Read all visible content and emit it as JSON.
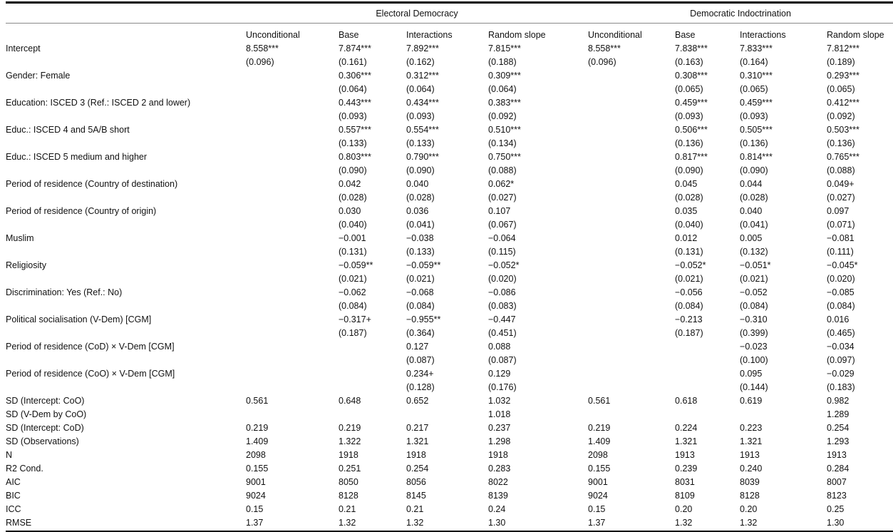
{
  "table": {
    "group_headers": [
      {
        "label": "Electoral Democracy",
        "span": 4
      },
      {
        "label": "Democratic Indoctrination",
        "span": 4
      }
    ],
    "model_headers": [
      "Unconditional",
      "Base",
      "Interactions",
      "Random slope",
      "Unconditional",
      "Base",
      "Interactions",
      "Random slope"
    ],
    "coefficient_rows": [
      {
        "label": "Intercept",
        "estimates": [
          "8.558***",
          "7.874***",
          "7.892***",
          "7.815***",
          "8.558***",
          "7.838***",
          "7.833***",
          "7.812***"
        ],
        "std_errors": [
          "(0.096)",
          "(0.161)",
          "(0.162)",
          "(0.188)",
          "(0.096)",
          "(0.163)",
          "(0.164)",
          "(0.189)"
        ]
      },
      {
        "label": "Gender: Female",
        "estimates": [
          "",
          "0.306***",
          "0.312***",
          "0.309***",
          "",
          "0.308***",
          "0.310***",
          "0.293***"
        ],
        "std_errors": [
          "",
          "(0.064)",
          "(0.064)",
          "(0.064)",
          "",
          "(0.065)",
          "(0.065)",
          "(0.065)"
        ]
      },
      {
        "label": "Education: ISCED 3 (Ref.: ISCED 2 and lower)",
        "estimates": [
          "",
          "0.443***",
          "0.434***",
          "0.383***",
          "",
          "0.459***",
          "0.459***",
          "0.412***"
        ],
        "std_errors": [
          "",
          "(0.093)",
          "(0.093)",
          "(0.092)",
          "",
          "(0.093)",
          "(0.093)",
          "(0.092)"
        ]
      },
      {
        "label": "Educ.: ISCED 4 and 5A/B short",
        "estimates": [
          "",
          "0.557***",
          "0.554***",
          "0.510***",
          "",
          "0.506***",
          "0.505***",
          "0.503***"
        ],
        "std_errors": [
          "",
          "(0.133)",
          "(0.133)",
          "(0.134)",
          "",
          "(0.136)",
          "(0.136)",
          "(0.136)"
        ]
      },
      {
        "label": "Educ.: ISCED 5 medium and higher",
        "estimates": [
          "",
          "0.803***",
          "0.790***",
          "0.750***",
          "",
          "0.817***",
          "0.814***",
          "0.765***"
        ],
        "std_errors": [
          "",
          "(0.090)",
          "(0.090)",
          "(0.088)",
          "",
          "(0.090)",
          "(0.090)",
          "(0.088)"
        ]
      },
      {
        "label": "Period of residence (Country of destination)",
        "estimates": [
          "",
          "0.042",
          "0.040",
          "0.062*",
          "",
          "0.045",
          "0.044",
          "0.049+"
        ],
        "std_errors": [
          "",
          "(0.028)",
          "(0.028)",
          "(0.027)",
          "",
          "(0.028)",
          "(0.028)",
          "(0.027)"
        ]
      },
      {
        "label": "Period of residence (Country of origin)",
        "estimates": [
          "",
          "0.030",
          "0.036",
          "0.107",
          "",
          "0.035",
          "0.040",
          "0.097"
        ],
        "std_errors": [
          "",
          "(0.040)",
          "(0.041)",
          "(0.067)",
          "",
          "(0.040)",
          "(0.041)",
          "(0.071)"
        ]
      },
      {
        "label": "Muslim",
        "estimates": [
          "",
          "−0.001",
          "−0.038",
          "−0.064",
          "",
          "0.012",
          "0.005",
          "−0.081"
        ],
        "std_errors": [
          "",
          "(0.131)",
          "(0.133)",
          "(0.115)",
          "",
          "(0.131)",
          "(0.132)",
          "(0.111)"
        ]
      },
      {
        "label": "Religiosity",
        "estimates": [
          "",
          "−0.059**",
          "−0.059**",
          "−0.052*",
          "",
          "−0.052*",
          "−0.051*",
          "−0.045*"
        ],
        "std_errors": [
          "",
          "(0.021)",
          "(0.021)",
          "(0.020)",
          "",
          "(0.021)",
          "(0.021)",
          "(0.020)"
        ]
      },
      {
        "label": "Discrimination: Yes (Ref.: No)",
        "estimates": [
          "",
          "−0.062",
          "−0.068",
          "−0.086",
          "",
          "−0.056",
          "−0.052",
          "−0.085"
        ],
        "std_errors": [
          "",
          "(0.084)",
          "(0.084)",
          "(0.083)",
          "",
          "(0.084)",
          "(0.084)",
          "(0.084)"
        ]
      },
      {
        "label": "Political socialisation (V-Dem) [CGM]",
        "estimates": [
          "",
          "−0.317+",
          "−0.955**",
          "−0.447",
          "",
          "−0.213",
          "−0.310",
          "0.016"
        ],
        "std_errors": [
          "",
          "(0.187)",
          "(0.364)",
          "(0.451)",
          "",
          "(0.187)",
          "(0.399)",
          "(0.465)"
        ]
      },
      {
        "label": "Period of residence (CoD) × V-Dem [CGM]",
        "estimates": [
          "",
          "",
          "0.127",
          "0.088",
          "",
          "",
          "−0.023",
          "−0.034"
        ],
        "std_errors": [
          "",
          "",
          "(0.087)",
          "(0.087)",
          "",
          "",
          "(0.100)",
          "(0.097)"
        ]
      },
      {
        "label": "Period of residence (CoO) × V-Dem [CGM]",
        "estimates": [
          "",
          "",
          "0.234+",
          "0.129",
          "",
          "",
          "0.095",
          "−0.029"
        ],
        "std_errors": [
          "",
          "",
          "(0.128)",
          "(0.176)",
          "",
          "",
          "(0.144)",
          "(0.183)"
        ]
      }
    ],
    "stat_rows": [
      {
        "label": "SD (Intercept: CoO)",
        "values": [
          "0.561",
          "0.648",
          "0.652",
          "1.032",
          "0.561",
          "0.618",
          "0.619",
          "0.982"
        ]
      },
      {
        "label": "SD (V-Dem by CoO)",
        "values": [
          "",
          "",
          "",
          "1.018",
          "",
          "",
          "",
          "1.289"
        ]
      },
      {
        "label": "SD (Intercept: CoD)",
        "values": [
          "0.219",
          "0.219",
          "0.217",
          "0.237",
          "0.219",
          "0.224",
          "0.223",
          "0.254"
        ]
      },
      {
        "label": "SD (Observations)",
        "values": [
          "1.409",
          "1.322",
          "1.321",
          "1.298",
          "1.409",
          "1.321",
          "1.321",
          "1.293"
        ]
      },
      {
        "label": "N",
        "values": [
          "2098",
          "1918",
          "1918",
          "1918",
          "2098",
          "1913",
          "1913",
          "1913"
        ]
      },
      {
        "label": "R2 Cond.",
        "values": [
          "0.155",
          "0.251",
          "0.254",
          "0.283",
          "0.155",
          "0.239",
          "0.240",
          "0.284"
        ]
      },
      {
        "label": "AIC",
        "values": [
          "9001",
          "8050",
          "8056",
          "8022",
          "9001",
          "8031",
          "8039",
          "8007"
        ]
      },
      {
        "label": "BIC",
        "values": [
          "9024",
          "8128",
          "8145",
          "8139",
          "9024",
          "8109",
          "8128",
          "8123"
        ]
      },
      {
        "label": "ICC",
        "values": [
          "0.15",
          "0.21",
          "0.21",
          "0.24",
          "0.15",
          "0.20",
          "0.20",
          "0.25"
        ]
      },
      {
        "label": "RMSE",
        "values": [
          "1.37",
          "1.32",
          "1.32",
          "1.30",
          "1.37",
          "1.32",
          "1.32",
          "1.30"
        ]
      }
    ]
  }
}
